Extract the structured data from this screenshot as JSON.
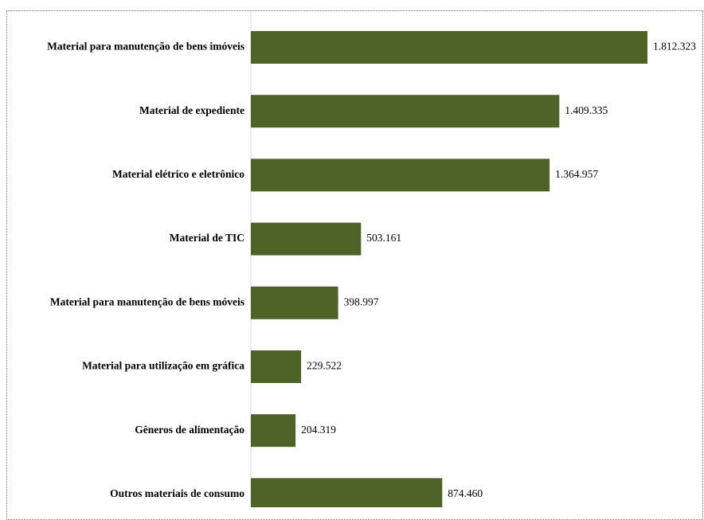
{
  "chart_data": {
    "type": "bar",
    "orientation": "horizontal",
    "categories": [
      "Material para manutenção de bens imóveis",
      "Material de expediente",
      "Material elétrico e eletrônico",
      "Material de TIC",
      "Material para manutenção de bens móveis",
      "Material para utilização em gráfica",
      "Gêneros de alimentação",
      "Outros materiais de consumo"
    ],
    "values": [
      1812323,
      1409335,
      1364957,
      503161,
      398997,
      229522,
      204319,
      874460
    ],
    "value_labels": [
      "1.812.323",
      "1.409.335",
      "1.364.957",
      "503.161",
      "398.997",
      "229.522",
      "204.319",
      "874.460"
    ],
    "xlim": [
      0,
      1812323
    ],
    "grid": false,
    "legend": "none",
    "bar_color": "#4f6228",
    "axis_color": "#d9d9d9"
  }
}
